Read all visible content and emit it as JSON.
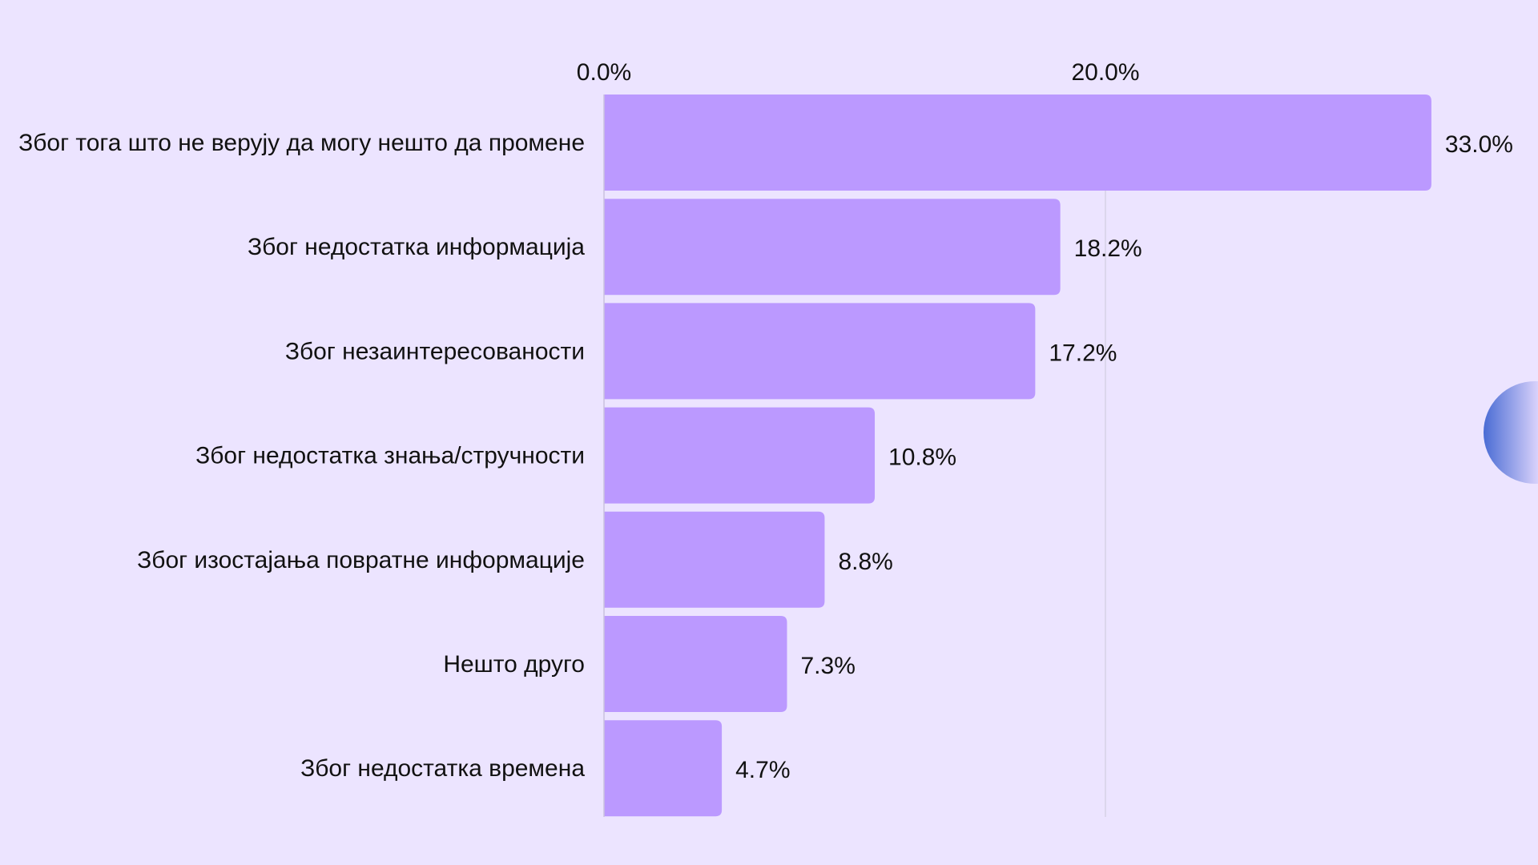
{
  "colors": {
    "background": "#ECE4FF",
    "bar": "#BB99FF",
    "gridline": "#D6D1E6",
    "axis_line": "#C9C2DD",
    "text": "#111111",
    "side_circle_dark": "#4A6CD4",
    "side_circle_light": "#D9D2FB"
  },
  "decorations": {
    "side_circle": "half-circle-gradient"
  },
  "chart_data": {
    "type": "bar",
    "orientation": "horizontal",
    "categories": [
      "Због тога што не верују да могу нешто да промене",
      "Због недостатка информација",
      "Због незаинтересованости",
      "Због недостатка знања/стручности",
      "Због изостајања повратне информације",
      "Нешто друго",
      "Због недостатка времена"
    ],
    "values": [
      33.0,
      18.2,
      17.2,
      10.8,
      8.8,
      7.3,
      4.7
    ],
    "value_labels": [
      "33.0%",
      "18.2%",
      "17.2%",
      "10.8%",
      "8.8%",
      "7.3%",
      "4.7%"
    ],
    "xticks": [
      0,
      20
    ],
    "xtick_labels": [
      "0.0%",
      "20.0%"
    ],
    "xlim": [
      0,
      36
    ],
    "grid": true,
    "xaxis_position": "top"
  }
}
